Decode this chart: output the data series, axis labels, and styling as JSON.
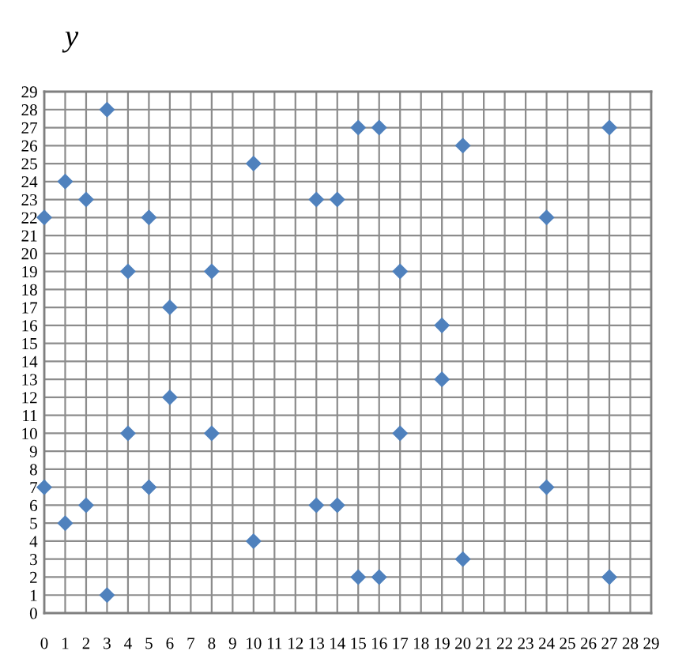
{
  "chart_data": {
    "type": "scatter",
    "ylabel": "y",
    "x": [
      0,
      1,
      2,
      3,
      4,
      5,
      6,
      8,
      10,
      13,
      14,
      15,
      16,
      17,
      19,
      19,
      20,
      24,
      27,
      0,
      1,
      2,
      3,
      4,
      5,
      6,
      8,
      10,
      13,
      14,
      15,
      16,
      17,
      20,
      24,
      27
    ],
    "values": [
      22,
      24,
      23,
      28,
      19,
      22,
      17,
      19,
      25,
      23,
      23,
      27,
      27,
      19,
      16,
      13,
      26,
      22,
      27,
      7,
      5,
      6,
      1,
      10,
      7,
      12,
      10,
      4,
      6,
      6,
      2,
      2,
      10,
      3,
      7,
      2
    ],
    "color": "#4f81bd",
    "marker": "diamond",
    "xlim": [
      0,
      29
    ],
    "ylim": [
      0,
      29
    ],
    "xticks": [
      0,
      1,
      2,
      3,
      4,
      5,
      6,
      7,
      8,
      9,
      10,
      11,
      12,
      13,
      14,
      15,
      16,
      17,
      18,
      19,
      20,
      21,
      22,
      23,
      24,
      25,
      26,
      27,
      28,
      29
    ],
    "yticks": [
      0,
      1,
      2,
      3,
      4,
      5,
      6,
      7,
      8,
      9,
      10,
      11,
      12,
      13,
      14,
      15,
      16,
      17,
      18,
      19,
      20,
      21,
      22,
      23,
      24,
      25,
      26,
      27,
      28,
      29
    ],
    "grid": true
  }
}
